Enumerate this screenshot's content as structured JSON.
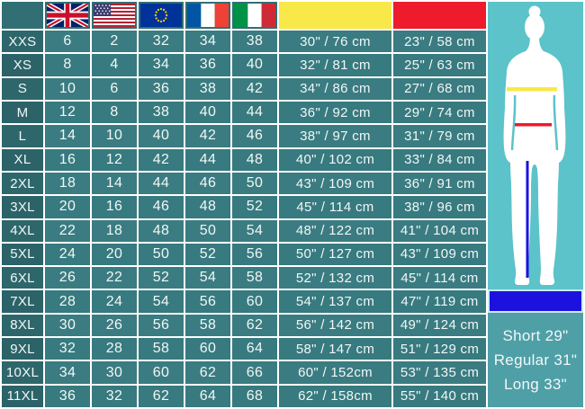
{
  "chart_data": {
    "type": "table",
    "title": "Clothing size conversion and body measurement chart",
    "columns": [
      {
        "key": "size",
        "header_icon": "",
        "header_text": ""
      },
      {
        "key": "uk",
        "header_icon": "uk-flag-icon",
        "header_text": ""
      },
      {
        "key": "us",
        "header_icon": "us-flag-icon",
        "header_text": ""
      },
      {
        "key": "eu",
        "header_icon": "eu-flag-icon",
        "header_text": ""
      },
      {
        "key": "fr",
        "header_icon": "france-flag-icon",
        "header_text": ""
      },
      {
        "key": "it",
        "header_icon": "italy-flag-icon",
        "header_text": ""
      },
      {
        "key": "chest",
        "header_swatch": "#F8E84A",
        "header_text": ""
      },
      {
        "key": "waist",
        "header_swatch": "#ED1B2C",
        "header_text": ""
      }
    ],
    "rows": [
      [
        "XXS",
        "6",
        "2",
        "32",
        "34",
        "38",
        "30\" / 76 cm",
        "23\" / 58 cm"
      ],
      [
        "XS",
        "8",
        "4",
        "34",
        "36",
        "40",
        "32\" / 81 cm",
        "25\" / 63 cm"
      ],
      [
        "S",
        "10",
        "6",
        "36",
        "38",
        "42",
        "34\" / 86 cm",
        "27\" / 68 cm"
      ],
      [
        "M",
        "12",
        "8",
        "38",
        "40",
        "44",
        "36\" / 92 cm",
        "29\" / 74 cm"
      ],
      [
        "L",
        "14",
        "10",
        "40",
        "42",
        "46",
        "38\" / 97 cm",
        "31\" / 79 cm"
      ],
      [
        "XL",
        "16",
        "12",
        "42",
        "44",
        "48",
        "40\" / 102 cm",
        "33\" / 84 cm"
      ],
      [
        "2XL",
        "18",
        "14",
        "44",
        "46",
        "50",
        "43\" / 109 cm",
        "36\" / 91 cm"
      ],
      [
        "3XL",
        "20",
        "16",
        "46",
        "48",
        "52",
        "45\" / 114 cm",
        "38\" / 96 cm"
      ],
      [
        "4XL",
        "22",
        "18",
        "48",
        "50",
        "54",
        "48\" / 122 cm",
        "41\" / 104 cm"
      ],
      [
        "5XL",
        "24",
        "20",
        "50",
        "52",
        "56",
        "50\" / 127 cm",
        "43\" / 109 cm"
      ],
      [
        "6XL",
        "26",
        "22",
        "52",
        "54",
        "58",
        "52\" / 132 cm",
        "45\" / 114 cm"
      ],
      [
        "7XL",
        "28",
        "24",
        "54",
        "56",
        "60",
        "54\" / 137 cm",
        "47\" / 119 cm"
      ],
      [
        "8XL",
        "30",
        "26",
        "56",
        "58",
        "62",
        "56\" / 142 cm",
        "49\" / 124 cm"
      ],
      [
        "9XL",
        "32",
        "28",
        "58",
        "60",
        "64",
        "58\" / 147 cm",
        "51\" / 129 cm"
      ],
      [
        "10XL",
        "34",
        "30",
        "60",
        "62",
        "66",
        "60\" / 152cm",
        "53\" / 135 cm"
      ],
      [
        "11XL",
        "36",
        "32",
        "62",
        "64",
        "68",
        "62\" / 158cm",
        "55\" / 140 cm"
      ]
    ],
    "legend": [
      "Short 29\"",
      "Regular 31\"",
      "Long 33\""
    ]
  },
  "colors": {
    "chest_yellow": "#F8E84A",
    "waist_red": "#ED1B2C",
    "inseam_blue": "#1B12DF",
    "cell_teal": "#3A7C81",
    "label_teal": "#2D676B",
    "figure_panel": "#5BC3C9",
    "legend_panel": "#4F9FA7",
    "silhouette": "#FFFFFF"
  }
}
